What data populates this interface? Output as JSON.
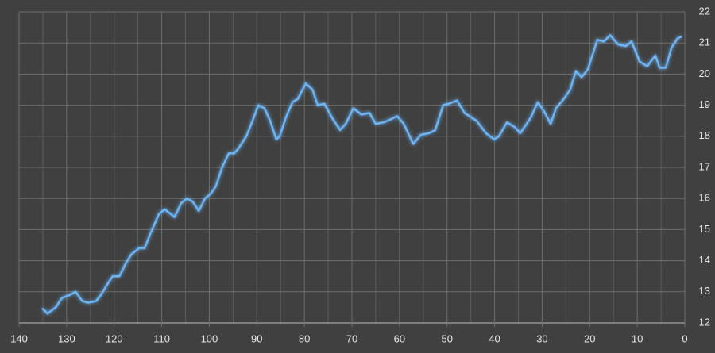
{
  "chart_data": {
    "type": "line",
    "x": [
      135.0,
      134.0,
      132.3,
      131.0,
      129.3,
      128.1,
      126.7,
      125.5,
      123.8,
      122.8,
      121.2,
      120.3,
      118.9,
      117.6,
      116.4,
      114.8,
      113.6,
      112.3,
      110.6,
      109.4,
      108.1,
      107.3,
      105.9,
      104.7,
      103.5,
      102.2,
      100.9,
      99.7,
      98.6,
      97.3,
      95.9,
      94.8,
      93.9,
      92.2,
      90.9,
      89.7,
      88.4,
      87.2,
      85.9,
      85.2,
      83.9,
      82.5,
      81.4,
      79.7,
      78.3,
      77.2,
      75.8,
      74.2,
      72.5,
      71.3,
      69.7,
      68.0,
      66.3,
      65.0,
      63.3,
      61.8,
      60.5,
      59.1,
      57.1,
      55.5,
      53.8,
      52.5,
      50.8,
      49.6,
      47.9,
      46.3,
      43.8,
      41.8,
      40.1,
      39.1,
      37.4,
      35.8,
      34.6,
      32.4,
      30.9,
      29.6,
      28.2,
      27.1,
      25.7,
      24.1,
      22.9,
      21.7,
      20.4,
      18.4,
      17.0,
      15.7,
      14.0,
      12.4,
      11.2,
      9.5,
      7.9,
      6.2,
      5.3,
      4.0,
      2.8,
      1.5,
      0.8
    ],
    "values": [
      12.45,
      12.3,
      12.5,
      12.8,
      12.9,
      13.0,
      12.7,
      12.65,
      12.7,
      12.9,
      13.3,
      13.5,
      13.5,
      13.9,
      14.2,
      14.4,
      14.4,
      14.9,
      15.5,
      15.65,
      15.5,
      15.4,
      15.85,
      16.0,
      15.9,
      15.6,
      16.0,
      16.15,
      16.4,
      17.0,
      17.45,
      17.45,
      17.6,
      18.0,
      18.5,
      19.0,
      18.9,
      18.5,
      17.9,
      18.0,
      18.6,
      19.1,
      19.2,
      19.7,
      19.5,
      19.0,
      19.05,
      18.6,
      18.2,
      18.4,
      18.9,
      18.7,
      18.75,
      18.4,
      18.45,
      18.55,
      18.65,
      18.4,
      17.75,
      18.05,
      18.1,
      18.2,
      19.0,
      19.05,
      19.15,
      18.75,
      18.5,
      18.1,
      17.9,
      18.0,
      18.45,
      18.3,
      18.1,
      18.6,
      19.1,
      18.8,
      18.4,
      18.9,
      19.15,
      19.5,
      20.1,
      19.9,
      20.15,
      21.1,
      21.05,
      21.25,
      20.95,
      20.9,
      21.05,
      20.4,
      20.25,
      20.6,
      20.2,
      20.2,
      20.85,
      21.15,
      21.2
    ],
    "color": "#6cb4f5",
    "xlim": [
      140,
      0
    ],
    "xticks": [
      140,
      130,
      120,
      110,
      100,
      90,
      80,
      70,
      60,
      50,
      40,
      30,
      20,
      10,
      0
    ],
    "ylim": [
      12,
      22
    ],
    "yticks": [
      12,
      13,
      14,
      15,
      16,
      17,
      18,
      19,
      20,
      21,
      22
    ],
    "grid": true
  }
}
